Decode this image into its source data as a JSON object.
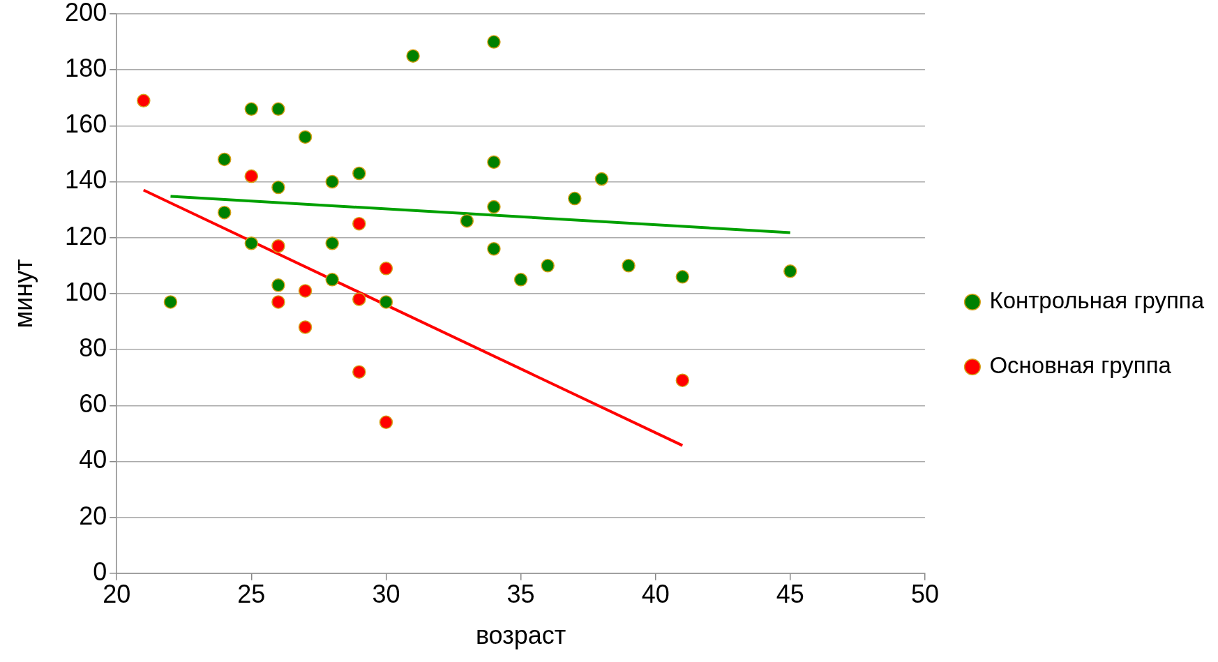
{
  "chart_data": {
    "type": "scatter",
    "xlabel": "возраст",
    "ylabel": "минут",
    "xlim": [
      20,
      50
    ],
    "xticks": [
      20,
      25,
      30,
      35,
      40,
      45,
      50
    ],
    "ylim": [
      0,
      200
    ],
    "yticks": [
      0,
      20,
      40,
      60,
      80,
      100,
      120,
      140,
      160,
      180,
      200
    ],
    "grid": "y",
    "legend": "right",
    "marker": "circle",
    "series": [
      {
        "name": "Контрольная группа",
        "color": "#008000",
        "x": [
          22,
          24,
          24,
          25,
          25,
          26,
          26,
          26,
          27,
          28,
          28,
          28,
          29,
          30,
          31,
          33,
          34,
          34,
          34,
          34,
          35,
          36,
          37,
          38,
          39,
          41,
          45
        ],
        "values": [
          97,
          148,
          129,
          166,
          118,
          166,
          138,
          103,
          156,
          140,
          118,
          105,
          143,
          97,
          185,
          126,
          190,
          147,
          131,
          116,
          105,
          110,
          134,
          141,
          110,
          106,
          108
        ]
      },
      {
        "name": "Основная группа",
        "color": "#ff0000",
        "x": [
          21,
          25,
          26,
          26,
          27,
          27,
          29,
          29,
          29,
          30,
          30,
          41
        ],
        "values": [
          169,
          142,
          117,
          97,
          101,
          88,
          125,
          98,
          72,
          109,
          54,
          69
        ]
      },
      {
        "type": "line",
        "color": "#00a000",
        "marker": "none",
        "x": [
          22,
          45
        ],
        "values": [
          134.8,
          121.8
        ]
      },
      {
        "type": "line",
        "color": "#ff0000",
        "marker": "none",
        "x": [
          21,
          41
        ],
        "values": [
          137,
          45.7
        ]
      }
    ]
  }
}
